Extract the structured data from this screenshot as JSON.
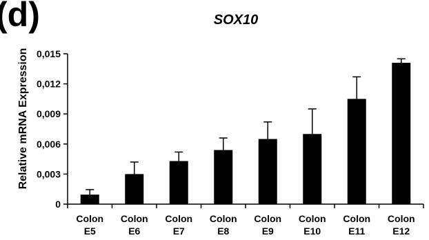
{
  "panel_label": "(d)",
  "chart_data": {
    "type": "bar",
    "title": "SOX10",
    "xlabel": "",
    "ylabel": "Relative mRNA Expression",
    "ylim": [
      0,
      0.015
    ],
    "yticks": [
      0,
      0.003,
      0.006,
      0.009,
      0.012,
      0.015
    ],
    "ytick_labels": [
      "0",
      "0,003",
      "0,006",
      "0,009",
      "0,012",
      "0,015"
    ],
    "categories": [
      [
        "Colon",
        "E5"
      ],
      [
        "Colon",
        "E6"
      ],
      [
        "Colon",
        "E7"
      ],
      [
        "Colon",
        "E8"
      ],
      [
        "Colon",
        "E9"
      ],
      [
        "Colon",
        "E10"
      ],
      [
        "Colon",
        "E11"
      ],
      [
        "Colon",
        "E12"
      ]
    ],
    "values": [
      0.00095,
      0.003,
      0.0043,
      0.0054,
      0.0065,
      0.007,
      0.0105,
      0.0141
    ],
    "errors": [
      0.0005,
      0.0012,
      0.0009,
      0.0012,
      0.0017,
      0.0025,
      0.0022,
      0.0004
    ],
    "bar_color": "#000000",
    "grid": false,
    "legend": "none"
  }
}
